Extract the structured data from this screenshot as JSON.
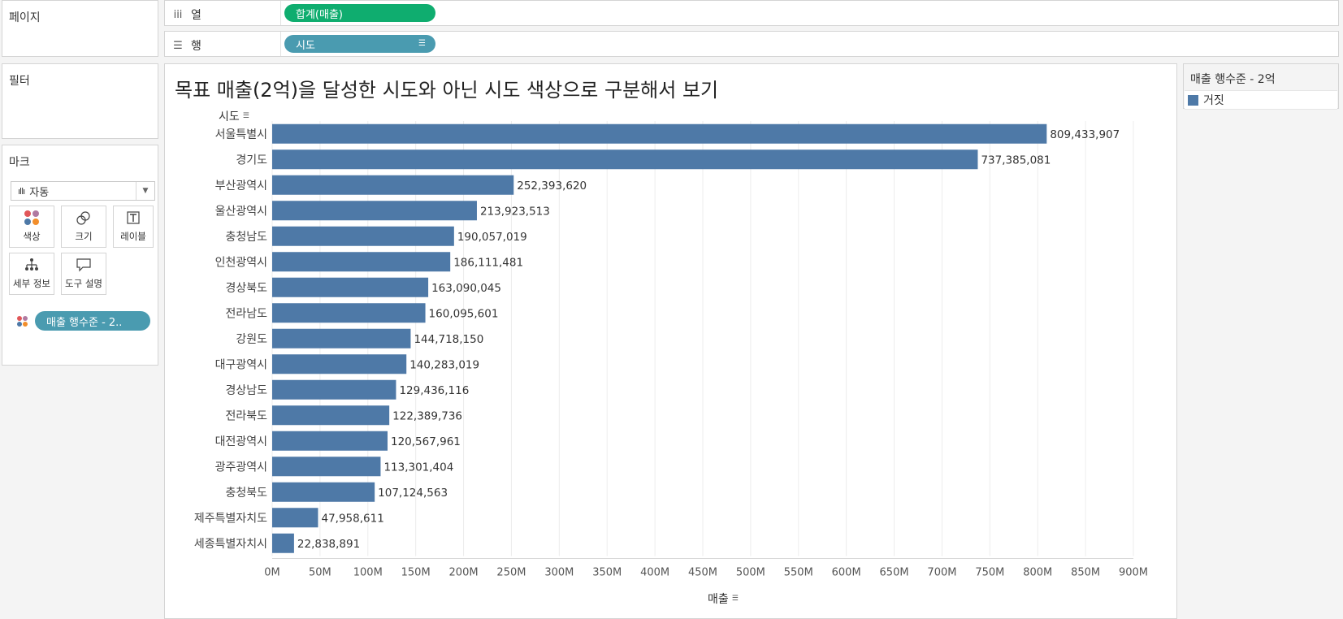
{
  "left_panels": {
    "pages_title": "페이지",
    "filters_title": "필터",
    "marks": {
      "title": "마크",
      "type_select": "자동",
      "buttons": [
        {
          "label": "색상",
          "icon": "color-dots-icon"
        },
        {
          "label": "크기",
          "icon": "size-circles-icon"
        },
        {
          "label": "레이블",
          "icon": "text-t-icon"
        },
        {
          "label": "세부 정보",
          "icon": "hierarchy-icon"
        },
        {
          "label": "도구 설명",
          "icon": "speech-bubble-icon"
        }
      ],
      "field_pill": "매출 행수준 - 2.."
    }
  },
  "shelves": {
    "columns": {
      "label": "열",
      "pill": "합계(매출)"
    },
    "rows": {
      "label": "행",
      "pill": "시도"
    }
  },
  "worksheet": {
    "title": "목표 매출(2억)을 달성한 시도와 아닌 시도 색상으로 구분해서 보기"
  },
  "legend": {
    "title": "매출 행수준 - 2억",
    "items": [
      {
        "label": "거짓",
        "color": "#4e79a7"
      }
    ]
  },
  "chart_data": {
    "type": "bar",
    "orientation": "horizontal",
    "title": "목표 매출(2억)을 달성한 시도와 아닌 시도 색상으로 구분해서 보기",
    "ylabel": "시도",
    "xlabel": "매출",
    "bar_color": "#4e79a7",
    "xlim": [
      0,
      900000000
    ],
    "grid": true,
    "categories": [
      "서울특별시",
      "경기도",
      "부산광역시",
      "울산광역시",
      "충청남도",
      "인천광역시",
      "경상북도",
      "전라남도",
      "강원도",
      "대구광역시",
      "경상남도",
      "전라북도",
      "대전광역시",
      "광주광역시",
      "충청북도",
      "제주특별자치도",
      "세종특별자치시"
    ],
    "values": [
      809433907,
      737385081,
      252393620,
      213923513,
      190057019,
      186111481,
      163090045,
      160095601,
      144718150,
      140283019,
      129436116,
      122389736,
      120567961,
      113301404,
      107124563,
      47958611,
      22838891
    ],
    "value_labels": [
      "809,433,907",
      "737,385,081",
      "252,393,620",
      "213,923,513",
      "190,057,019",
      "186,111,481",
      "163,090,045",
      "160,095,601",
      "144,718,150",
      "140,283,019",
      "129,436,116",
      "122,389,736",
      "120,567,961",
      "113,301,404",
      "107,124,563",
      "47,958,611",
      "22,838,891"
    ],
    "x_ticks": [
      {
        "value": 0,
        "label": "0M"
      },
      {
        "value": 50000000,
        "label": "50M"
      },
      {
        "value": 100000000,
        "label": "100M"
      },
      {
        "value": 150000000,
        "label": "150M"
      },
      {
        "value": 200000000,
        "label": "200M"
      },
      {
        "value": 250000000,
        "label": "250M"
      },
      {
        "value": 300000000,
        "label": "300M"
      },
      {
        "value": 350000000,
        "label": "350M"
      },
      {
        "value": 400000000,
        "label": "400M"
      },
      {
        "value": 450000000,
        "label": "450M"
      },
      {
        "value": 500000000,
        "label": "500M"
      },
      {
        "value": 550000000,
        "label": "550M"
      },
      {
        "value": 600000000,
        "label": "600M"
      },
      {
        "value": 650000000,
        "label": "650M"
      },
      {
        "value": 700000000,
        "label": "700M"
      },
      {
        "value": 750000000,
        "label": "750M"
      },
      {
        "value": 800000000,
        "label": "800M"
      },
      {
        "value": 850000000,
        "label": "850M"
      },
      {
        "value": 900000000,
        "label": "900M"
      }
    ]
  }
}
